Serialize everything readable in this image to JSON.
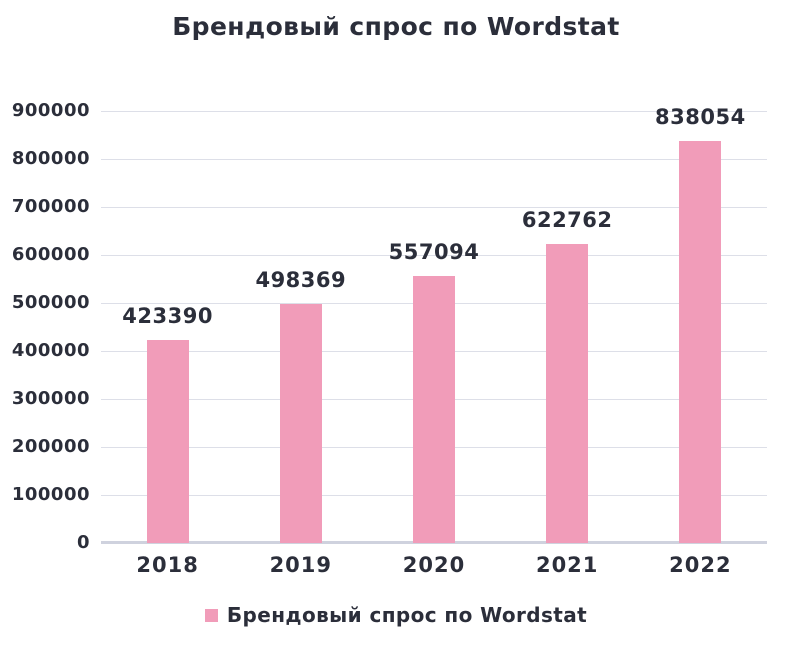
{
  "title": "Брендовый спрос по Wordstat",
  "legend": {
    "label": "Брендовый спрос по Wordstat"
  },
  "colors": {
    "bar": "#F19CB9",
    "text": "#2B2E3A",
    "grid": "#DDDFE8",
    "axis": "#CFD2DE",
    "background": "#FFFFFF"
  },
  "chart_data": {
    "type": "bar",
    "title": "Брендовый спрос по Wordstat",
    "categories": [
      "2018",
      "2019",
      "2020",
      "2021",
      "2022"
    ],
    "values": [
      423390,
      498369,
      557094,
      622762,
      838054
    ],
    "series_name": "Брендовый спрос по Wordstat",
    "xlabel": "",
    "ylabel": "",
    "ylim": [
      0,
      900000
    ],
    "yticks": [
      0,
      100000,
      200000,
      300000,
      400000,
      500000,
      600000,
      700000,
      800000,
      900000
    ],
    "grid": true,
    "bar_labels": true,
    "legend_position": "bottom"
  }
}
